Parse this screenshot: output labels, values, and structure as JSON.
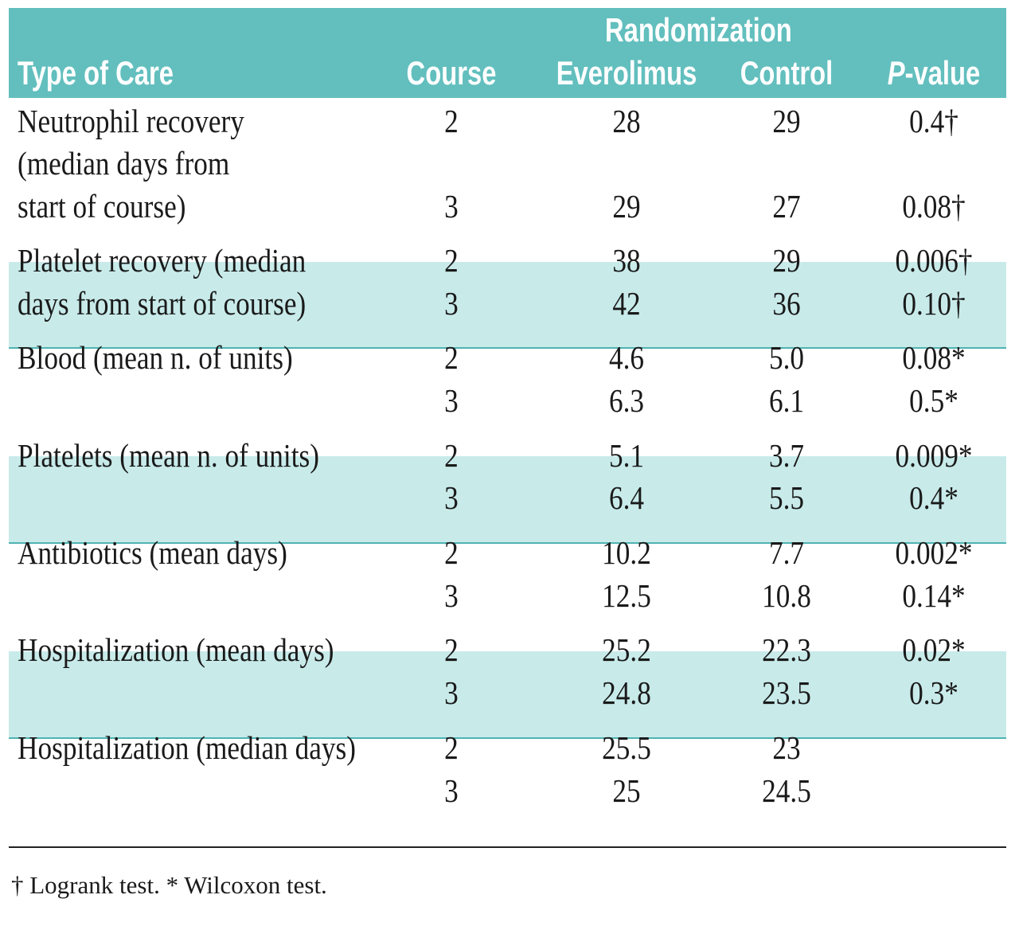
{
  "header": {
    "type_of_care": "Type of Care",
    "course": "Course",
    "randomization": "Randomization",
    "everolimus": "Everolimus",
    "control": "Control",
    "p_value_italic": "P",
    "p_value_rest": "-value"
  },
  "groups": [
    {
      "label_lines": [
        "Neutrophil recovery",
        "(median days from",
        "start of course)"
      ],
      "shaded": false,
      "rows": [
        {
          "course": "2",
          "everolimus": "28",
          "control": "29",
          "p": "0.4†"
        },
        {
          "course": "3",
          "everolimus": "29",
          "control": "27",
          "p": "0.08†"
        }
      ]
    },
    {
      "label_lines": [
        "Platelet recovery (median",
        "days from start of course)"
      ],
      "shaded": true,
      "rows": [
        {
          "course": "2",
          "everolimus": "38",
          "control": "29",
          "p": "0.006†"
        },
        {
          "course": "3",
          "everolimus": "42",
          "control": "36",
          "p": "0.10†"
        }
      ]
    },
    {
      "label_lines": [
        "Blood (mean n. of units)"
      ],
      "shaded": false,
      "rows": [
        {
          "course": "2",
          "everolimus": "4.6",
          "control": "5.0",
          "p": "0.08*"
        },
        {
          "course": "3",
          "everolimus": "6.3",
          "control": "6.1",
          "p": "0.5*"
        }
      ]
    },
    {
      "label_lines": [
        "Platelets (mean n. of units)"
      ],
      "shaded": true,
      "rows": [
        {
          "course": "2",
          "everolimus": "5.1",
          "control": "3.7",
          "p": "0.009*"
        },
        {
          "course": "3",
          "everolimus": "6.4",
          "control": "5.5",
          "p": "0.4*"
        }
      ]
    },
    {
      "label_lines": [
        "Antibiotics (mean days)"
      ],
      "shaded": false,
      "rows": [
        {
          "course": "2",
          "everolimus": "10.2",
          "control": "7.7",
          "p": "0.002*"
        },
        {
          "course": "3",
          "everolimus": "12.5",
          "control": "10.8",
          "p": "0.14*"
        }
      ]
    },
    {
      "label_lines": [
        "Hospitalization (mean days)"
      ],
      "shaded": true,
      "rows": [
        {
          "course": "2",
          "everolimus": "25.2",
          "control": "22.3",
          "p": "0.02*"
        },
        {
          "course": "3",
          "everolimus": "24.8",
          "control": "23.5",
          "p": "0.3*"
        }
      ]
    },
    {
      "label_lines": [
        "Hospitalization (median days)"
      ],
      "shaded": false,
      "rows": [
        {
          "course": "2",
          "everolimus": "25.5",
          "control": "23",
          "p": ""
        },
        {
          "course": "3",
          "everolimus": "25",
          "control": "24.5",
          "p": ""
        }
      ]
    }
  ],
  "colors": {
    "header": "#62bfbe",
    "shaded_row": "#c8ebea",
    "divider": "#4fb3b1"
  },
  "footnote": "† Logrank test. * Wilcoxon test."
}
